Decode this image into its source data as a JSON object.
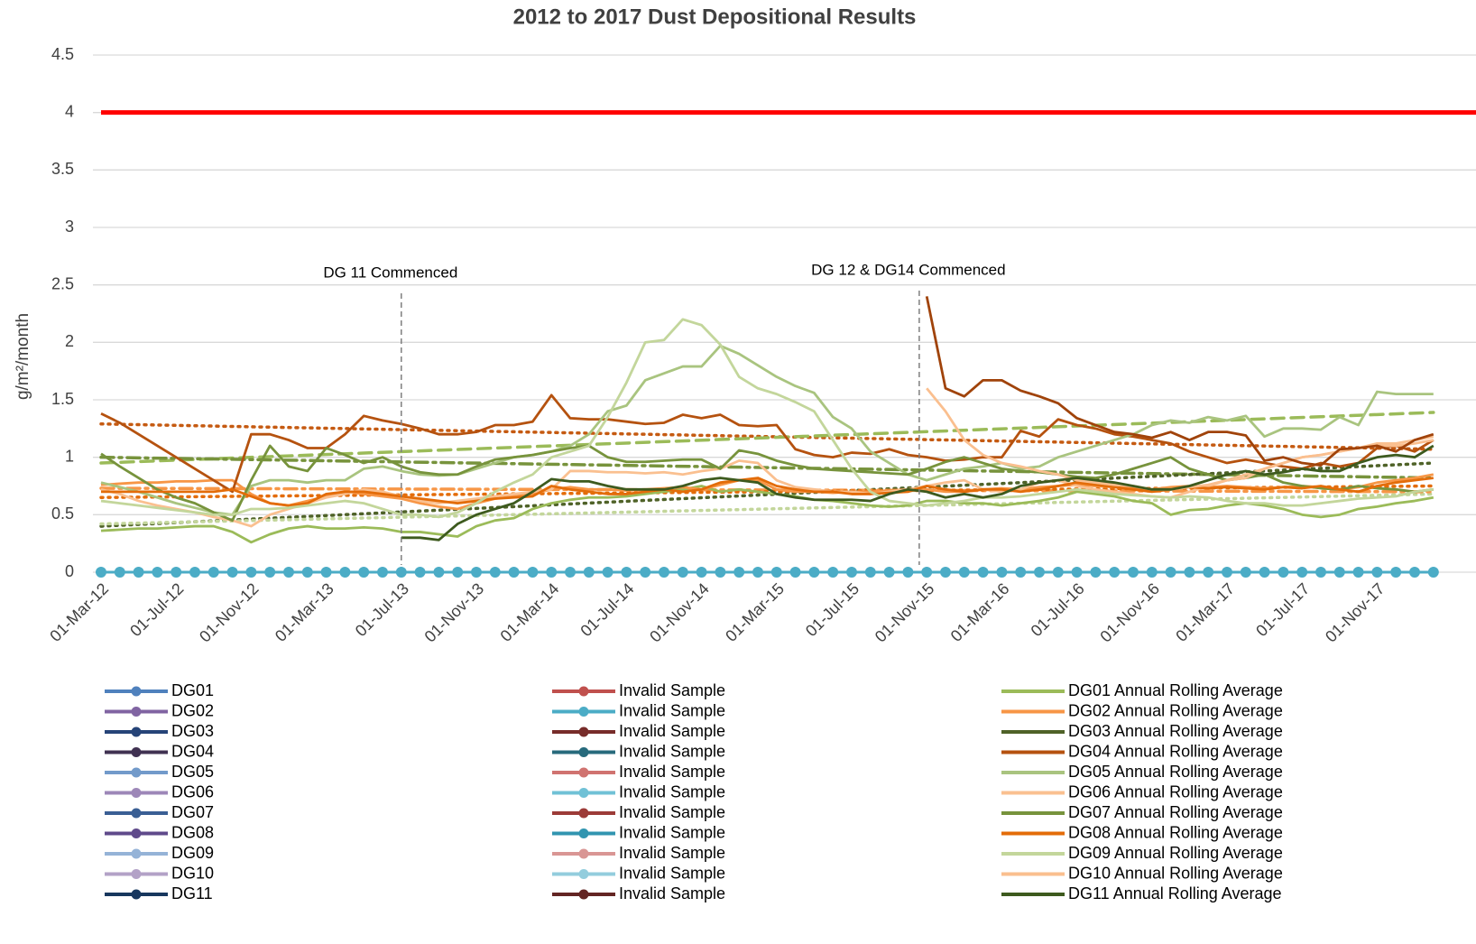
{
  "chart_data": {
    "type": "line",
    "title": "2012 to 2017 Dust Depositional Results",
    "y_label": "g/m²/month",
    "categories": [
      "01-Mar-12",
      null,
      null,
      null,
      "01-Jul-12",
      null,
      null,
      null,
      "01-Nov-12",
      null,
      null,
      null,
      "01-Mar-13",
      null,
      null,
      null,
      "01-Jul-13",
      null,
      null,
      null,
      "01-Nov-13",
      null,
      null,
      null,
      "01-Mar-14",
      null,
      null,
      null,
      "01-Jul-14",
      null,
      null,
      null,
      "01-Nov-14",
      null,
      null,
      null,
      "01-Mar-15",
      null,
      null,
      null,
      "01-Jul-15",
      null,
      null,
      null,
      "01-Nov-15",
      null,
      null,
      null,
      "01-Mar-16",
      null,
      null,
      null,
      "01-Jul-16",
      null,
      null,
      null,
      "01-Nov-16",
      null,
      null,
      null,
      "01-Mar-17",
      null,
      null,
      null,
      "01-Jul-17",
      null,
      null,
      null,
      "01-Nov-17",
      null,
      null,
      null
    ],
    "ylim": [
      0,
      4.5
    ],
    "yticks": [
      0,
      0.5,
      1,
      1.5,
      2,
      2.5,
      3,
      3.5,
      4,
      4.5
    ],
    "grid": true,
    "limit_line": {
      "value": 4,
      "color": "#ff0000"
    },
    "annotations": [
      {
        "text": "DG 11 Commenced",
        "category": 16
      },
      {
        "text": "DG 12 & DG14 Commenced",
        "category": 43.6
      }
    ],
    "trendlines": [
      {
        "color": "#c55a11",
        "dash": "dotted",
        "values": [
          1.29,
          1.07
        ]
      },
      {
        "color": "#9bbb59",
        "dash": "dashed",
        "values": [
          0.95,
          1.39
        ]
      },
      {
        "color": "#77933c",
        "dash": "dashdot",
        "values": [
          1.0,
          0.82
        ]
      },
      {
        "color": "#4f6228",
        "dash": "dotted",
        "values": [
          0.4,
          0.95
        ]
      },
      {
        "color": "#c3d69b",
        "dash": "dotted",
        "values": [
          0.42,
          0.68
        ]
      },
      {
        "color": "#f79646",
        "dash": "dashdot",
        "values": [
          0.73,
          0.7
        ]
      },
      {
        "color": "#e36c09",
        "dash": "dotted",
        "values": [
          0.65,
          0.75
        ]
      }
    ],
    "series": [
      {
        "name": "DG01",
        "color": "#4f81bd",
        "marker": true
      },
      {
        "name": "DG02",
        "color": "#8064a2",
        "marker": true
      },
      {
        "name": "DG03",
        "color": "#264478",
        "marker": true
      },
      {
        "name": "DG04",
        "color": "#403152",
        "marker": true
      },
      {
        "name": "DG05",
        "color": "#729aca",
        "marker": true
      },
      {
        "name": "DG06",
        "color": "#9d87b8",
        "marker": true
      },
      {
        "name": "DG07",
        "color": "#3a5f94",
        "marker": true
      },
      {
        "name": "DG08",
        "color": "#5f4a8b",
        "marker": true
      },
      {
        "name": "DG09",
        "color": "#95b3d7",
        "marker": true
      },
      {
        "name": "DG10",
        "color": "#b3a2c7",
        "marker": true
      },
      {
        "name": "DG11",
        "color": "#17375e",
        "marker": true
      },
      {
        "name": "Invalid Sample",
        "color": "#c0504d",
        "marker": true
      },
      {
        "name": "Invalid Sample",
        "color": "#4bacc6",
        "marker": true,
        "values": [
          0,
          0,
          0,
          0,
          0,
          0,
          0,
          0,
          0,
          0,
          0,
          0,
          0,
          0,
          0,
          0,
          0,
          0,
          0,
          0,
          0,
          0,
          0,
          0,
          0,
          0,
          0,
          0,
          0,
          0,
          0,
          0,
          0,
          0,
          0,
          0,
          0,
          0,
          0,
          0,
          0,
          0,
          0,
          0,
          0,
          0,
          0,
          0,
          0,
          0,
          0,
          0,
          0,
          0,
          0,
          0,
          0,
          0,
          0,
          0,
          0,
          0,
          0,
          0,
          0,
          0,
          0,
          0,
          0,
          0,
          0,
          0
        ]
      },
      {
        "name": "Invalid Sample",
        "color": "#772c2a",
        "marker": true
      },
      {
        "name": "Invalid Sample",
        "color": "#276a7c",
        "marker": true
      },
      {
        "name": "Invalid Sample",
        "color": "#d07370",
        "marker": true
      },
      {
        "name": "Invalid Sample",
        "color": "#70c1d6",
        "marker": true
      },
      {
        "name": "Invalid Sample",
        "color": "#9c3b38",
        "marker": true
      },
      {
        "name": "Invalid Sample",
        "color": "#3195b0",
        "marker": true
      },
      {
        "name": "Invalid Sample",
        "color": "#d99694",
        "marker": true
      },
      {
        "name": "Invalid Sample",
        "color": "#93cddd",
        "marker": true
      },
      {
        "name": "Invalid Sample",
        "color": "#632523",
        "marker": true
      },
      {
        "name": "DG01 Annual Rolling Average",
        "color": "#9bbb59",
        "values": [
          0.36,
          0.37,
          0.38,
          0.38,
          0.39,
          0.4,
          0.4,
          0.35,
          0.26,
          0.33,
          0.38,
          0.4,
          0.38,
          0.38,
          0.39,
          0.38,
          0.35,
          0.35,
          0.33,
          0.31,
          0.4,
          0.45,
          0.47,
          0.55,
          0.6,
          0.63,
          0.65,
          0.65,
          0.66,
          0.68,
          0.7,
          0.72,
          0.75,
          0.7,
          0.72,
          0.7,
          0.68,
          0.66,
          0.63,
          0.62,
          0.6,
          0.58,
          0.57,
          0.58,
          0.62,
          0.62,
          0.6,
          0.6,
          0.58,
          0.6,
          0.62,
          0.65,
          0.7,
          0.68,
          0.66,
          0.62,
          0.6,
          0.5,
          0.54,
          0.55,
          0.58,
          0.6,
          0.58,
          0.55,
          0.5,
          0.48,
          0.5,
          0.55,
          0.57,
          0.6,
          0.62,
          0.65
        ]
      },
      {
        "name": "DG02 Annual Rolling Average",
        "color": "#f79646",
        "values": [
          0.76,
          0.77,
          0.78,
          0.78,
          0.79,
          0.79,
          0.8,
          0.8,
          0.68,
          0.6,
          0.58,
          0.62,
          0.66,
          0.7,
          0.68,
          0.66,
          0.64,
          0.6,
          0.57,
          0.55,
          0.6,
          0.64,
          0.66,
          0.68,
          0.72,
          0.74,
          0.72,
          0.72,
          0.71,
          0.72,
          0.73,
          0.74,
          0.72,
          0.76,
          0.8,
          0.8,
          0.72,
          0.7,
          0.7,
          0.69,
          0.7,
          0.7,
          0.71,
          0.72,
          0.72,
          0.7,
          0.7,
          0.72,
          0.73,
          0.72,
          0.74,
          0.75,
          0.76,
          0.75,
          0.74,
          0.73,
          0.72,
          0.74,
          0.75,
          0.74,
          0.75,
          0.74,
          0.73,
          0.74,
          0.75,
          0.74,
          0.72,
          0.74,
          0.78,
          0.8,
          0.82,
          0.85
        ]
      },
      {
        "name": "DG03 Annual Rolling Average",
        "color": "#4f6228"
      },
      {
        "name": "DG04 Annual Rolling Average",
        "color": "#b5520f",
        "values": [
          1.38,
          1.3,
          1.2,
          1.1,
          1.0,
          0.9,
          0.8,
          0.7,
          1.2,
          1.2,
          1.15,
          1.08,
          1.08,
          1.2,
          1.36,
          1.32,
          1.29,
          1.25,
          1.2,
          1.2,
          1.22,
          1.28,
          1.28,
          1.31,
          1.54,
          1.34,
          1.33,
          1.33,
          1.31,
          1.29,
          1.3,
          1.37,
          1.34,
          1.37,
          1.28,
          1.27,
          1.28,
          1.07,
          1.02,
          1.0,
          1.04,
          1.03,
          1.07,
          1.02,
          1.0,
          0.97,
          0.98,
          1.0,
          1.0,
          1.23,
          1.18,
          1.33,
          1.28,
          1.25,
          1.2,
          1.18,
          1.15,
          1.12,
          1.05,
          1.0,
          0.95,
          0.98,
          0.95,
          0.92,
          0.9,
          0.95,
          0.92,
          0.95,
          1.08,
          1.1,
          1.05,
          1.15
        ]
      },
      {
        "name": "DG05 Annual Rolling Average",
        "color": "#a9c47f",
        "values": [
          0.78,
          0.74,
          0.7,
          0.65,
          0.6,
          0.56,
          0.52,
          0.5,
          0.75,
          0.8,
          0.8,
          0.78,
          0.8,
          0.8,
          0.9,
          0.92,
          0.88,
          0.85,
          0.84,
          0.85,
          0.9,
          0.95,
          1.0,
          1.02,
          1.05,
          1.1,
          1.2,
          1.4,
          1.45,
          1.67,
          1.73,
          1.79,
          1.79,
          1.97,
          1.9,
          1.8,
          1.7,
          1.62,
          1.56,
          1.35,
          1.25,
          1.05,
          0.95,
          0.85,
          0.8,
          0.85,
          0.9,
          0.92,
          0.95,
          0.9,
          0.92,
          1.0,
          1.05,
          1.1,
          1.15,
          1.2,
          1.28,
          1.32,
          1.3,
          1.35,
          1.32,
          1.36,
          1.18,
          1.25,
          1.25,
          1.24,
          1.35,
          1.28,
          1.57,
          1.55,
          1.55,
          1.55
        ]
      },
      {
        "name": "DG06 Annual Rolling Average",
        "color": "#fac090",
        "values": [
          0.72,
          0.68,
          0.62,
          0.58,
          0.55,
          0.52,
          0.48,
          0.45,
          0.4,
          0.5,
          0.55,
          0.6,
          0.65,
          0.68,
          0.72,
          0.7,
          0.66,
          0.62,
          0.6,
          0.62,
          0.64,
          0.66,
          0.68,
          0.7,
          0.72,
          0.88,
          0.88,
          0.87,
          0.87,
          0.86,
          0.87,
          0.85,
          0.88,
          0.9,
          0.97,
          0.95,
          0.8,
          0.74,
          0.72,
          0.7,
          0.7,
          0.68,
          0.7,
          0.72,
          0.75,
          0.78,
          0.8,
          0.72,
          0.7,
          0.72,
          0.78,
          0.8,
          0.75,
          0.72,
          0.7,
          0.68,
          0.66,
          0.65,
          0.7,
          0.75,
          0.8,
          0.85,
          0.9,
          0.95,
          1.0,
          1.02,
          1.05,
          1.08,
          1.12,
          1.12,
          1.15,
          1.18
        ]
      },
      {
        "name": "DG07 Annual Rolling Average",
        "color": "#77933c",
        "values": [
          1.03,
          0.92,
          0.82,
          0.72,
          0.65,
          0.6,
          0.52,
          0.45,
          0.8,
          1.1,
          0.92,
          0.88,
          1.08,
          1.02,
          0.95,
          1.0,
          0.92,
          0.87,
          0.85,
          0.85,
          0.92,
          0.98,
          1.0,
          1.02,
          1.05,
          1.08,
          1.1,
          1.0,
          0.96,
          0.96,
          0.97,
          0.98,
          0.98,
          0.9,
          1.06,
          1.03,
          0.97,
          0.93,
          0.9,
          0.89,
          0.88,
          0.87,
          0.86,
          0.85,
          0.9,
          0.96,
          1.0,
          0.95,
          0.9,
          0.88,
          0.87,
          0.85,
          0.83,
          0.82,
          0.85,
          0.9,
          0.95,
          1.0,
          0.9,
          0.85,
          0.8,
          0.82,
          0.85,
          0.78,
          0.75,
          0.73,
          0.72,
          0.75,
          0.73,
          0.72,
          0.7,
          0.72
        ]
      },
      {
        "name": "DG08 Annual Rolling Average",
        "color": "#e36c09",
        "values": [
          0.7,
          0.7,
          0.7,
          0.7,
          0.7,
          0.7,
          0.7,
          0.72,
          0.66,
          0.6,
          0.58,
          0.6,
          0.68,
          0.7,
          0.7,
          0.68,
          0.66,
          0.64,
          0.62,
          0.6,
          0.62,
          0.64,
          0.65,
          0.66,
          0.75,
          0.72,
          0.7,
          0.68,
          0.68,
          0.7,
          0.72,
          0.7,
          0.72,
          0.78,
          0.8,
          0.82,
          0.75,
          0.72,
          0.7,
          0.7,
          0.68,
          0.68,
          0.69,
          0.7,
          0.75,
          0.72,
          0.7,
          0.72,
          0.72,
          0.7,
          0.72,
          0.75,
          0.78,
          0.76,
          0.74,
          0.72,
          0.7,
          0.72,
          0.74,
          0.73,
          0.74,
          0.73,
          0.72,
          0.74,
          0.73,
          0.75,
          0.72,
          0.7,
          0.75,
          0.78,
          0.8,
          0.82
        ]
      },
      {
        "name": "DG09 Annual Rolling Average",
        "color": "#c3d69b",
        "values": [
          0.62,
          0.6,
          0.58,
          0.56,
          0.54,
          0.52,
          0.5,
          0.5,
          0.55,
          0.55,
          0.56,
          0.58,
          0.6,
          0.62,
          0.6,
          0.55,
          0.5,
          0.5,
          0.48,
          0.52,
          0.6,
          0.7,
          0.78,
          0.85,
          1.0,
          1.05,
          1.1,
          1.35,
          1.65,
          2.0,
          2.02,
          2.2,
          2.15,
          1.98,
          1.7,
          1.6,
          1.55,
          1.48,
          1.4,
          1.15,
          0.9,
          0.7,
          0.62,
          0.6,
          0.58,
          0.6,
          0.62,
          0.65,
          0.65,
          0.66,
          0.68,
          0.7,
          0.72,
          0.7,
          0.68,
          0.67,
          0.66,
          0.65,
          0.66,
          0.65,
          0.62,
          0.6,
          0.6,
          0.58,
          0.58,
          0.6,
          0.62,
          0.64,
          0.65,
          0.66,
          0.7,
          0.72
        ]
      },
      {
        "name": "DG10 Annual Rolling Average",
        "color": "#fabf8f",
        "values": [
          null,
          null,
          null,
          null,
          null,
          null,
          null,
          null,
          null,
          null,
          null,
          null,
          null,
          null,
          null,
          null,
          null,
          null,
          null,
          null,
          null,
          null,
          null,
          null,
          null,
          null,
          null,
          null,
          null,
          null,
          null,
          null,
          null,
          null,
          null,
          null,
          null,
          null,
          null,
          null,
          null,
          null,
          null,
          null,
          1.6,
          1.4,
          1.15,
          1.02,
          0.95,
          0.92,
          0.88,
          0.85,
          0.8,
          0.78,
          0.76,
          0.75,
          0.72,
          0.72,
          0.74,
          0.76,
          0.8,
          0.82,
          0.9,
          0.95,
          1.0,
          1.02,
          1.05,
          1.08,
          1.1,
          1.1,
          1.12,
          1.15
        ]
      },
      {
        "name": "DG11 Annual Rolling Average",
        "color": "#3d5a1e",
        "values": [
          null,
          null,
          null,
          null,
          null,
          null,
          null,
          null,
          null,
          null,
          null,
          null,
          null,
          null,
          null,
          null,
          0.3,
          0.3,
          0.28,
          0.42,
          0.5,
          0.55,
          0.6,
          0.7,
          0.81,
          0.79,
          0.79,
          0.75,
          0.72,
          0.72,
          0.72,
          0.75,
          0.8,
          0.82,
          0.8,
          0.78,
          0.68,
          0.65,
          0.63,
          0.63,
          0.63,
          0.62,
          0.68,
          0.72,
          0.7,
          0.65,
          0.68,
          0.65,
          0.68,
          0.75,
          0.78,
          0.8,
          0.82,
          0.8,
          0.78,
          0.75,
          0.72,
          0.72,
          0.75,
          0.8,
          0.85,
          0.88,
          0.85,
          0.87,
          0.9,
          0.88,
          0.88,
          0.95,
          1.0,
          1.02,
          1.0,
          1.1
        ]
      },
      {
        "color": "#a0430a",
        "values": [
          null,
          null,
          null,
          null,
          null,
          null,
          null,
          null,
          null,
          null,
          null,
          null,
          null,
          null,
          null,
          null,
          null,
          null,
          null,
          null,
          null,
          null,
          null,
          null,
          null,
          null,
          null,
          null,
          null,
          null,
          null,
          null,
          null,
          null,
          null,
          null,
          null,
          null,
          null,
          null,
          null,
          null,
          null,
          null,
          2.4,
          1.6,
          1.53,
          1.67,
          1.67,
          1.58,
          1.53,
          1.47,
          1.34,
          1.28,
          1.22,
          1.2,
          1.17,
          1.22,
          1.15,
          1.22,
          1.22,
          1.19,
          0.97,
          1.0,
          0.95,
          0.93,
          1.07,
          1.08,
          1.1,
          1.05,
          1.15,
          1.2
        ]
      }
    ]
  }
}
